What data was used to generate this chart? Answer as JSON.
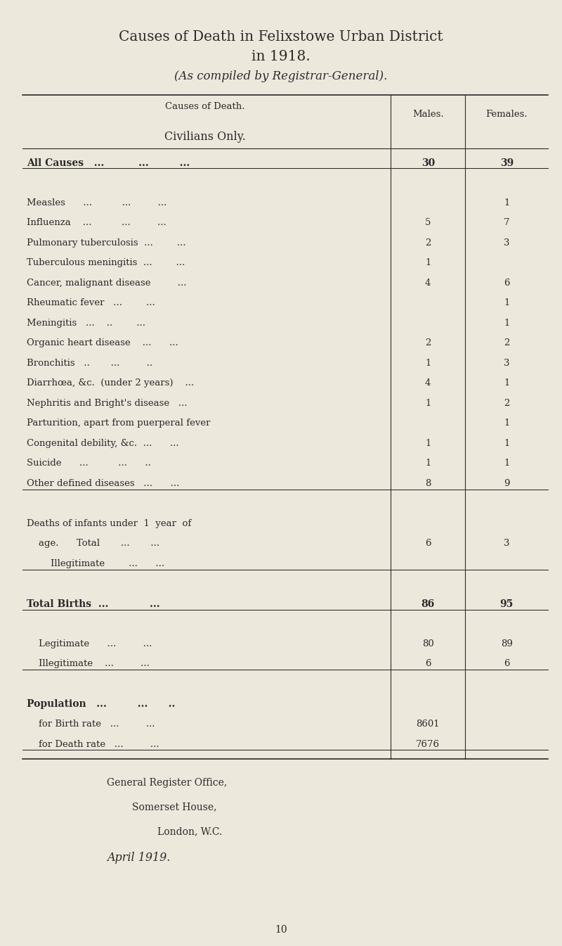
{
  "title_line1": "Causes of Death in Felixstowe Urban District",
  "title_line2": "in 1918.",
  "title_line3": "(As compiled by Registrar-General).",
  "col_header_cause": "Causes of Death.",
  "col_header_civilians": "Civilians Only.",
  "col_header_males": "Males.",
  "col_header_females": "Females.",
  "bg_color": "#EDE8DC",
  "text_color": "#2a2a2a",
  "rows": [
    {
      "label": "All Causes   ...          ...         ...",
      "males": "30",
      "females": "39",
      "bold": true,
      "separator": true
    },
    {
      "label": "",
      "males": "",
      "females": "",
      "bold": false,
      "separator": false
    },
    {
      "label": "Measles      ...          ...         ...",
      "males": "",
      "females": "1",
      "bold": false,
      "separator": false
    },
    {
      "label": "Influenza    ...          ...         ...",
      "males": "5",
      "females": "7",
      "bold": false,
      "separator": false
    },
    {
      "label": "Pulmonary tuberculosis  ...        ...",
      "males": "2",
      "females": "3",
      "bold": false,
      "separator": false
    },
    {
      "label": "Tuberculous meningitis  ...        ...",
      "males": "1",
      "females": "",
      "bold": false,
      "separator": false
    },
    {
      "label": "Cancer, malignant disease         ...",
      "males": "4",
      "females": "6",
      "bold": false,
      "separator": false
    },
    {
      "label": "Rheumatic fever   ...        ...",
      "males": "",
      "females": "1",
      "bold": false,
      "separator": false
    },
    {
      "label": "Meningitis   ...    ..        ...",
      "males": "",
      "females": "1",
      "bold": false,
      "separator": false
    },
    {
      "label": "Organic heart disease    ...      ...",
      "males": "2",
      "females": "2",
      "bold": false,
      "separator": false
    },
    {
      "label": "Bronchitis   ..       ...         ..",
      "males": "1",
      "females": "3",
      "bold": false,
      "separator": false
    },
    {
      "label": "Diarrhœa, &c.  (under 2 years)    ...",
      "males": "4",
      "females": "1",
      "bold": false,
      "separator": false
    },
    {
      "label": "Nephritis and Bright's disease   ...",
      "males": "1",
      "females": "2",
      "bold": false,
      "separator": false
    },
    {
      "label": "Parturition, apart from puerperal fever",
      "males": "",
      "females": "1",
      "bold": false,
      "separator": false
    },
    {
      "label": "Congenital debility, &c.  ...      ...",
      "males": "1",
      "females": "1",
      "bold": false,
      "separator": false
    },
    {
      "label": "Suicide      ...          ...      ..",
      "males": "1",
      "females": "1",
      "bold": false,
      "separator": false
    },
    {
      "label": "Other defined diseases   ...      ...",
      "males": "8",
      "females": "9",
      "bold": false,
      "separator": true
    },
    {
      "label": "",
      "males": "",
      "females": "",
      "bold": false,
      "separator": false
    },
    {
      "label": "Deaths of infants under  1  year  of",
      "males": "",
      "females": "",
      "bold": false,
      "separator": false
    },
    {
      "label": "    age.      Total       ...       ...",
      "males": "6",
      "females": "3",
      "bold": false,
      "separator": false
    },
    {
      "label": "        Illegitimate        ...      ...",
      "males": "",
      "females": "",
      "bold": false,
      "separator": true
    },
    {
      "label": "",
      "males": "",
      "females": "",
      "bold": false,
      "separator": false
    },
    {
      "label": "Total Births  ...            ...",
      "males": "86",
      "females": "95",
      "bold": true,
      "separator": true
    },
    {
      "label": "",
      "males": "",
      "females": "",
      "bold": false,
      "separator": false
    },
    {
      "label": "    Legitimate      ...         ...",
      "males": "80",
      "females": "89",
      "bold": false,
      "separator": false
    },
    {
      "label": "    Illegitimate    ...         ...",
      "males": "6",
      "females": "6",
      "bold": false,
      "separator": true
    },
    {
      "label": "",
      "males": "",
      "females": "",
      "bold": false,
      "separator": false
    },
    {
      "label": "Population   ...         ...      ..",
      "males": "",
      "females": "",
      "bold": true,
      "separator": false
    },
    {
      "label": "    for Birth rate   ...         ...",
      "males": "8601",
      "females": "",
      "bold": false,
      "separator": false
    },
    {
      "label": "    for Death rate   ...         ...",
      "males": "7676",
      "females": "",
      "bold": false,
      "separator": true
    }
  ],
  "footer_line1": "General Register Office,",
  "footer_line2": "Somerset House,",
  "footer_line3": "London, W.C.",
  "footer_line4": "April 1919.",
  "page_number": "10"
}
